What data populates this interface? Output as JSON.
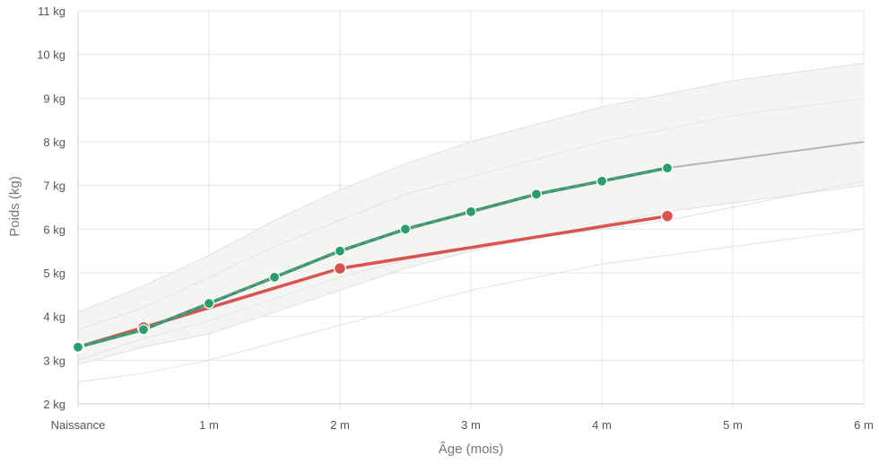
{
  "chart_data": {
    "type": "line",
    "title": "",
    "xlabel": "Âge (mois)",
    "ylabel": "Poids (kg)",
    "xlim": [
      0,
      6
    ],
    "ylim": [
      2,
      11
    ],
    "x_ticks": [
      {
        "value": 0,
        "label": "Naissance"
      },
      {
        "value": 1,
        "label": "1 m"
      },
      {
        "value": 2,
        "label": "2 m"
      },
      {
        "value": 3,
        "label": "3 m"
      },
      {
        "value": 4,
        "label": "4 m"
      },
      {
        "value": 5,
        "label": "5 m"
      },
      {
        "value": 6,
        "label": "6 m"
      }
    ],
    "y_ticks": [
      {
        "value": 2,
        "label": "2 kg"
      },
      {
        "value": 3,
        "label": "3 kg"
      },
      {
        "value": 4,
        "label": "4 kg"
      },
      {
        "value": 5,
        "label": "5 kg"
      },
      {
        "value": 6,
        "label": "6 kg"
      },
      {
        "value": 7,
        "label": "7 kg"
      },
      {
        "value": 8,
        "label": "8 kg"
      },
      {
        "value": 9,
        "label": "9 kg"
      },
      {
        "value": 10,
        "label": "10 kg"
      },
      {
        "value": 11,
        "label": "11 kg"
      }
    ],
    "grid": true,
    "percentile_band": {
      "color": "#f4f4f2",
      "x": [
        0,
        0.5,
        1,
        1.5,
        2,
        2.5,
        3,
        3.5,
        4,
        4.5,
        5,
        5.5,
        6
      ],
      "upper": [
        4.1,
        4.7,
        5.4,
        6.2,
        6.9,
        7.5,
        8.0,
        8.4,
        8.8,
        9.1,
        9.4,
        9.6,
        9.8
      ],
      "lower": [
        2.9,
        3.3,
        3.6,
        4.1,
        4.6,
        5.1,
        5.5,
        5.8,
        6.1,
        6.4,
        6.6,
        6.8,
        7.0
      ]
    },
    "reference_curves": [
      {
        "color": "#e3e3e3",
        "x": [
          0,
          0.5,
          1,
          1.5,
          2,
          2.5,
          3,
          3.5,
          4,
          4.5,
          5,
          5.5,
          6
        ],
        "values": [
          3.7,
          4.2,
          4.9,
          5.6,
          6.2,
          6.8,
          7.2,
          7.6,
          8.0,
          8.3,
          8.6,
          8.8,
          9.0
        ]
      },
      {
        "color": "#e3e3e3",
        "x": [
          0,
          0.5,
          1,
          1.5,
          2,
          2.5,
          3,
          3.5,
          4,
          4.5,
          5,
          5.5,
          6
        ],
        "values": [
          3.0,
          3.5,
          3.9,
          4.4,
          4.9,
          5.3,
          5.6,
          5.8,
          6.0,
          6.2,
          6.5,
          6.8,
          7.1
        ]
      },
      {
        "color": "#e3e3e3",
        "x": [
          0,
          0.5,
          1,
          1.5,
          2,
          2.5,
          3,
          3.5,
          4,
          4.5,
          5,
          5.5,
          6
        ],
        "values": [
          2.5,
          2.7,
          3.0,
          3.4,
          3.8,
          4.2,
          4.6,
          4.9,
          5.2,
          5.4,
          5.6,
          5.8,
          6.0
        ]
      }
    ],
    "series": [
      {
        "color": "#d9534f",
        "x": [
          0,
          0.5,
          2,
          4.5
        ],
        "values": [
          3.3,
          3.75,
          5.1,
          6.3
        ]
      },
      {
        "color": "#2a9d6e",
        "dash_color": "#8a8a8a",
        "x": [
          0,
          0.5,
          1,
          1.5,
          2,
          2.5,
          3,
          3.5,
          4,
          4.5
        ],
        "values": [
          3.3,
          3.7,
          4.3,
          4.9,
          5.5,
          6.0,
          6.4,
          6.8,
          7.1,
          7.4
        ]
      },
      {
        "color": "#b5b5b5",
        "x": [
          4.5,
          5,
          5.5,
          6
        ],
        "values": [
          7.4,
          7.6,
          7.8,
          8.0
        ]
      }
    ]
  }
}
